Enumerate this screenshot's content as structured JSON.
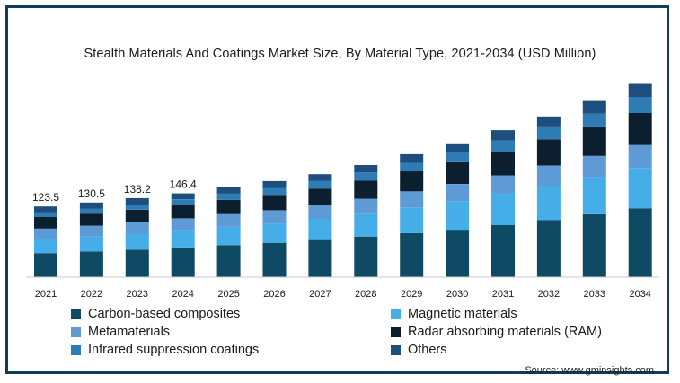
{
  "chart_data": {
    "type": "stacked-bar",
    "title": "Stealth Materials And Coatings Market Size, By Material Type, 2021-2034 (USD Million)",
    "categories": [
      "2021",
      "2022",
      "2023",
      "2024",
      "2025",
      "2026",
      "2027",
      "2028",
      "2029",
      "2030",
      "2031",
      "2032",
      "2033",
      "2034"
    ],
    "totals_labels": [
      "123.5",
      "130.5",
      "138.2",
      "146.4",
      "",
      "",
      "",
      "",
      "",
      "",
      "",
      "",
      "",
      ""
    ],
    "series": [
      {
        "name": "Carbon-based composites",
        "color": "#0e4a63",
        "values": [
          42,
          45,
          48,
          52,
          56,
          60,
          65,
          71,
          77,
          83,
          91,
          100,
          110,
          120
        ]
      },
      {
        "name": "Magnetic materials",
        "color": "#45aee8",
        "values": [
          25,
          26,
          28,
          30,
          32,
          34,
          37,
          40,
          45,
          50,
          55,
          60,
          65,
          71
        ]
      },
      {
        "name": "Metamaterials",
        "color": "#5d9ad6",
        "values": [
          18,
          19,
          20,
          21,
          22,
          23,
          24,
          26,
          28,
          30,
          32,
          35,
          37,
          40
        ]
      },
      {
        "name": "Radar absorbing materials (RAM)",
        "color": "#0b1f2e",
        "values": [
          20,
          21,
          22,
          23,
          25,
          27,
          29,
          32,
          35,
          38,
          42,
          46,
          50,
          56
        ]
      },
      {
        "name": "Infrared suppression coatings",
        "color": "#2d7cb6",
        "values": [
          8,
          9,
          9,
          10,
          11,
          12,
          13,
          14,
          15,
          17,
          19,
          21,
          24,
          28
        ]
      },
      {
        "name": "Others",
        "color": "#1e4e7e",
        "values": [
          10.5,
          10.5,
          11.2,
          10.4,
          11,
          12,
          12,
          13,
          15,
          16,
          18,
          19,
          22,
          23
        ]
      }
    ],
    "ylim": [
      0,
      345
    ],
    "grid": false,
    "legend_position": "bottom"
  },
  "legend": {
    "items": [
      {
        "label": "Carbon-based composites",
        "color": "#0e4a63"
      },
      {
        "label": "Magnetic materials",
        "color": "#45aee8"
      },
      {
        "label": "Metamaterials",
        "color": "#5d9ad6"
      },
      {
        "label": "Radar absorbing materials (RAM)",
        "color": "#0b1f2e"
      },
      {
        "label": "Infrared suppression coatings",
        "color": "#2d7cb6"
      },
      {
        "label": "Others",
        "color": "#1e4e7e"
      }
    ]
  },
  "source": "Source: www.gminsights.com"
}
